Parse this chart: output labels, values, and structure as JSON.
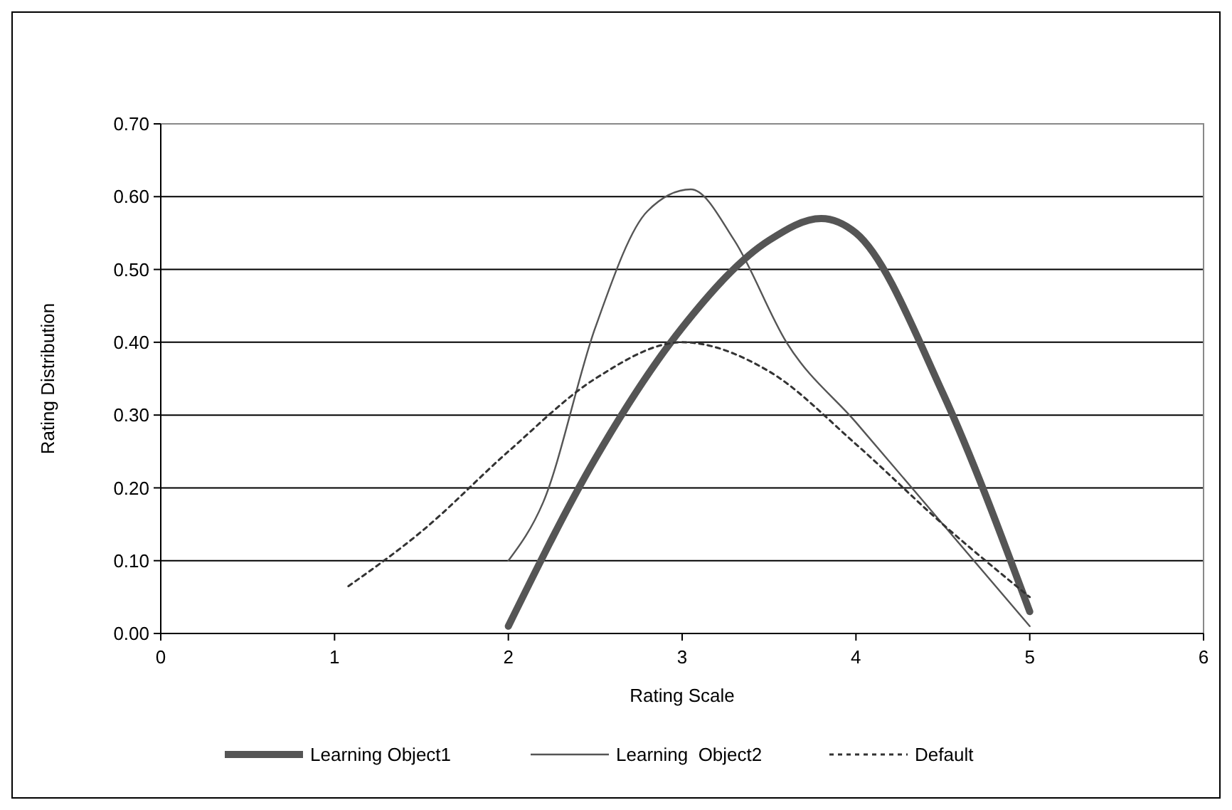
{
  "chart_data": {
    "type": "line",
    "xlabel": "Rating Scale",
    "ylabel": "Rating Distribution",
    "xlim": [
      0,
      6
    ],
    "xticks": [
      0,
      1,
      2,
      3,
      4,
      5,
      6
    ],
    "ylim": [
      0,
      0.7
    ],
    "yticks": [
      {
        "value": 0,
        "label": "0.00"
      },
      {
        "value": 0.1,
        "label": "0.10"
      },
      {
        "value": 0.2,
        "label": "0.20"
      },
      {
        "value": 0.3,
        "label": "0.30"
      },
      {
        "value": 0.4,
        "label": "0.40"
      },
      {
        "value": 0.5,
        "label": "0.50"
      },
      {
        "value": 0.6,
        "label": "0.60"
      },
      {
        "value": 0.7,
        "label": "0.70"
      }
    ],
    "grid": "y",
    "legend": "bottom",
    "series": [
      {
        "name": "Learning Object1",
        "color": "#555555",
        "line_style": "solid",
        "x": [
          2,
          2.5,
          3,
          3.5,
          3.8,
          4,
          4.5,
          5
        ],
        "values": [
          0.01,
          0.24,
          0.42,
          0.54,
          0.57,
          0.55,
          0.33,
          0.03
        ]
      },
      {
        "name": "Learning  Object2",
        "color": "#555555",
        "line_style": "solid",
        "x": [
          2,
          2.2,
          2.5,
          2.8,
          3.05,
          3.3,
          3.6,
          4,
          4.5,
          5
        ],
        "values": [
          0.1,
          0.18,
          0.42,
          0.58,
          0.61,
          0.54,
          0.4,
          0.29,
          0.15,
          0.01
        ]
      },
      {
        "name": "Default",
        "color": "#333333",
        "line_style": "dotted",
        "x": [
          1.08,
          1.5,
          2,
          2.5,
          3,
          3.5,
          4,
          4.5,
          5
        ],
        "values": [
          0.065,
          0.14,
          0.25,
          0.35,
          0.4,
          0.36,
          0.26,
          0.15,
          0.05
        ]
      }
    ]
  }
}
